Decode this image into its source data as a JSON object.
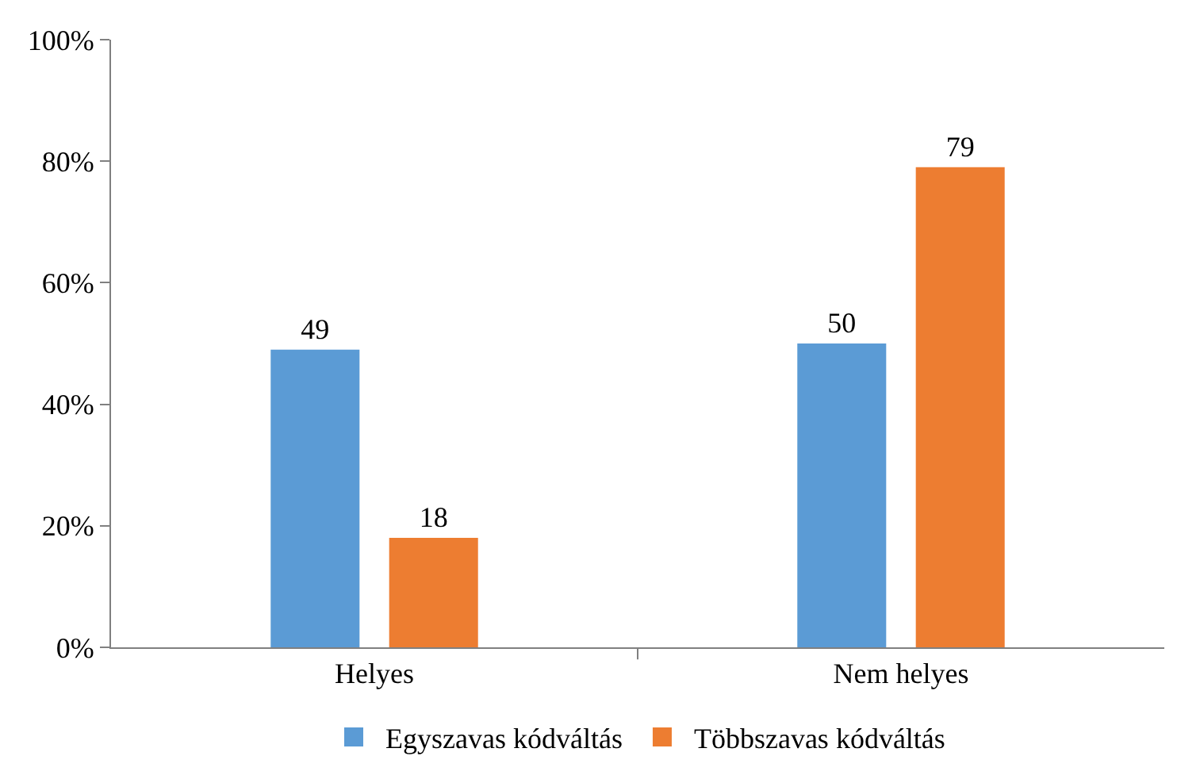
{
  "chart_data": {
    "type": "bar",
    "categories": [
      "Helyes",
      "Nem helyes"
    ],
    "series": [
      {
        "name": "Egyszavas kódváltás",
        "color": "#5b9bd5",
        "values": [
          49,
          50
        ]
      },
      {
        "name": "Többszavas kódváltás",
        "color": "#ed7d31",
        "values": [
          18,
          79
        ]
      }
    ],
    "ylim": [
      0,
      100
    ],
    "yticks": [
      {
        "value": 0,
        "label": "0%"
      },
      {
        "value": 20,
        "label": "20%"
      },
      {
        "value": 40,
        "label": "40%"
      },
      {
        "value": 60,
        "label": "60%"
      },
      {
        "value": 80,
        "label": "80%"
      },
      {
        "value": 100,
        "label": "100%"
      }
    ],
    "data_labels": true,
    "legend": "bottom"
  }
}
